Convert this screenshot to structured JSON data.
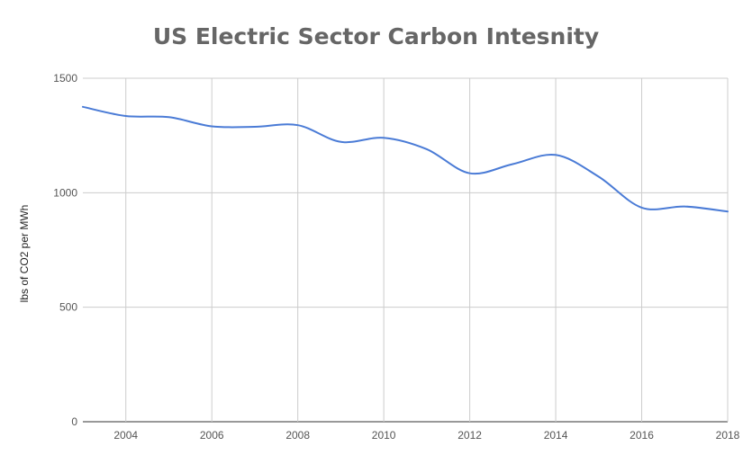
{
  "chart_data": {
    "type": "line",
    "title": "US Electric Sector Carbon Intesnity",
    "xlabel": "",
    "ylabel": "lbs of CO2 per MWh",
    "xlim": [
      2003,
      2018
    ],
    "ylim": [
      0,
      1500
    ],
    "x_ticks": [
      "2004",
      "2006",
      "2008",
      "2010",
      "2012",
      "2014",
      "2016",
      "2018"
    ],
    "y_ticks": [
      "0",
      "500",
      "1000",
      "1500"
    ],
    "grid": true,
    "legend": "none",
    "series": [
      {
        "color": "#4a7bd6",
        "x": [
          2003,
          2004,
          2005,
          2006,
          2007,
          2008,
          2009,
          2010,
          2011,
          2012,
          2013,
          2014,
          2015,
          2016,
          2017,
          2018
        ],
        "values": [
          1375,
          1335,
          1330,
          1290,
          1288,
          1295,
          1222,
          1240,
          1190,
          1085,
          1125,
          1165,
          1070,
          935,
          940,
          918
        ]
      }
    ]
  }
}
